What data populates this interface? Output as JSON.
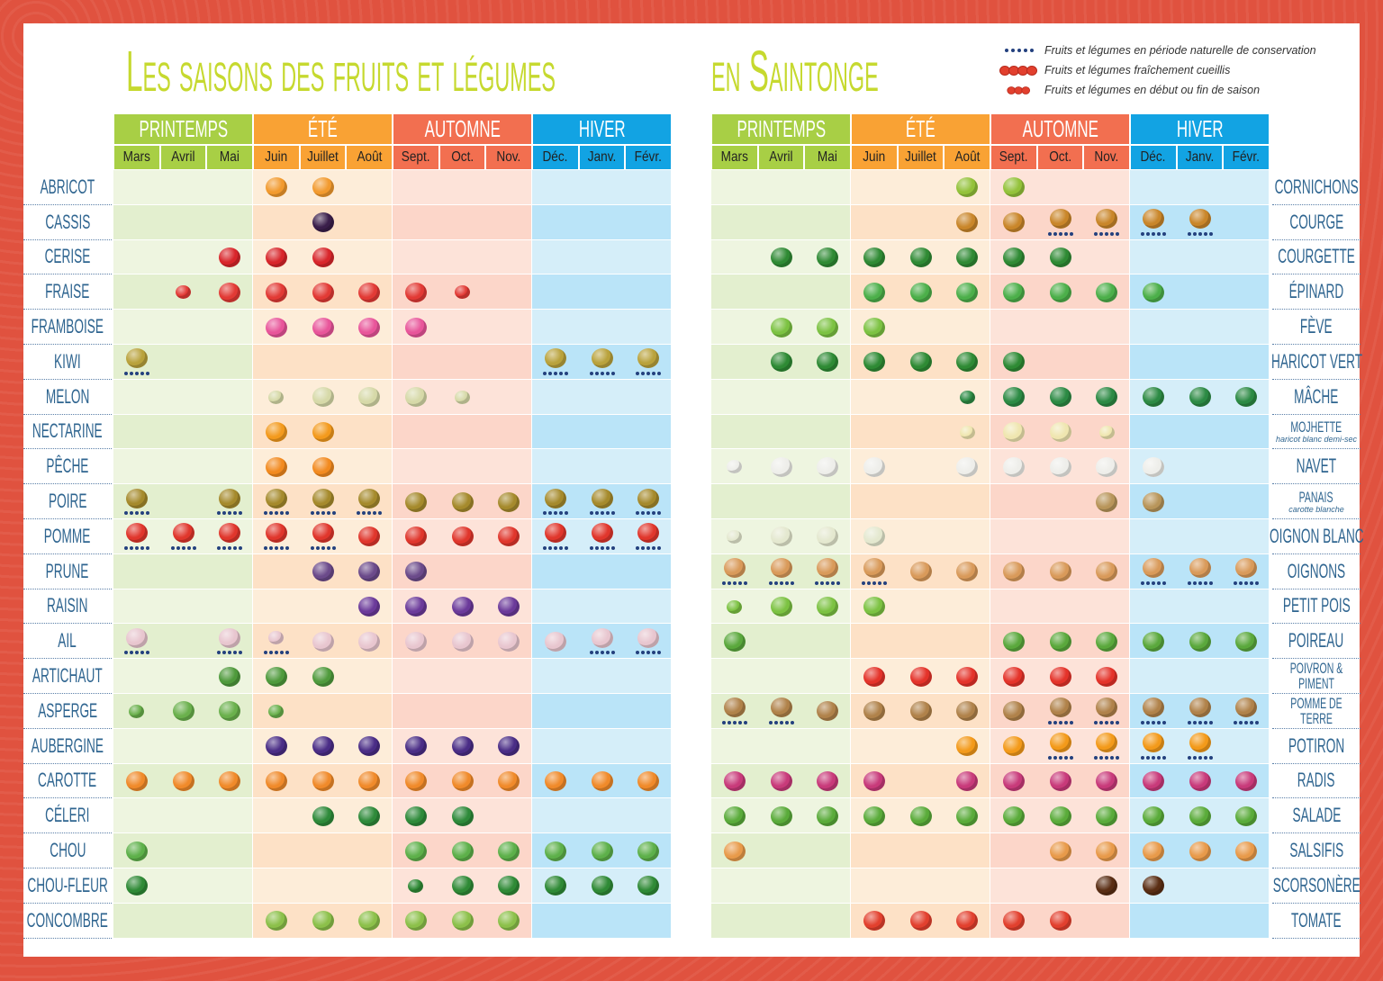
{
  "title": {
    "part1": "Les saisons des fruits et légumes",
    "part2": "en Saintonge"
  },
  "legend": [
    {
      "symbol": "conservation-dots",
      "text": "Fruits et légumes en période naturelle de conservation"
    },
    {
      "symbol": "full-icon",
      "text": "Fruits et légumes fraîchement cueillis"
    },
    {
      "symbol": "small-icon",
      "text": "Fruits et légumes en début ou fin de saison"
    }
  ],
  "seasons": [
    {
      "label": "PRINTEMPS",
      "color": "#a8cf45",
      "light": "#eef5e0",
      "dark": "#e3efcf"
    },
    {
      "label": "ÉTÉ",
      "color": "#f9a234",
      "light": "#fdedd9",
      "dark": "#fde1c6"
    },
    {
      "label": "AUTOMNE",
      "color": "#f26f50",
      "light": "#fde3d9",
      "dark": "#fcd6c9"
    },
    {
      "label": "HIVER",
      "color": "#12a3e3",
      "light": "#d5eef9",
      "dark": "#bae4f8"
    }
  ],
  "months": [
    "Mars",
    "Avril",
    "Mai",
    "Juin",
    "Juillet",
    "Août",
    "Sept.",
    "Oct.",
    "Nov.",
    "Déc.",
    "Janv.",
    "Févr."
  ],
  "cell_legend": {
    "f": "fraîchement cueilli",
    "s": "début ou fin de saison",
    "+": "période naturelle de conservation"
  },
  "left": [
    {
      "label": "Abricot",
      "icon": "apricot",
      "color": "#f29a2e",
      "cells": [
        "",
        "",
        "",
        "f",
        "f",
        "",
        "",
        "",
        "",
        "",
        "",
        ""
      ]
    },
    {
      "label": "Cassis",
      "icon": "blackcurrant",
      "color": "#3a1e4a",
      "cells": [
        "",
        "",
        "",
        "",
        "f",
        "",
        "",
        "",
        "",
        "",
        "",
        ""
      ]
    },
    {
      "label": "Cerise",
      "icon": "cherry",
      "color": "#d8262b",
      "cells": [
        "",
        "",
        "f",
        "f",
        "f",
        "",
        "",
        "",
        "",
        "",
        "",
        ""
      ]
    },
    {
      "label": "Fraise",
      "icon": "strawberry",
      "color": "#e23a35",
      "cells": [
        "",
        "s",
        "f",
        "f",
        "f",
        "f",
        "f",
        "s",
        "",
        "",
        "",
        ""
      ]
    },
    {
      "label": "Framboise",
      "icon": "raspberry",
      "color": "#e8559a",
      "cells": [
        "",
        "",
        "",
        "f",
        "f",
        "f",
        "f",
        "",
        "",
        "",
        "",
        ""
      ]
    },
    {
      "label": "Kiwi",
      "icon": "kiwi",
      "color": "#b9a23c",
      "cells": [
        "f+",
        "",
        "",
        "",
        "",
        "",
        "",
        "",
        "",
        "f+",
        "f+",
        "f+"
      ]
    },
    {
      "label": "Melon",
      "icon": "melon",
      "color": "#d6d9a8",
      "cells": [
        "",
        "",
        "",
        "s",
        "f",
        "f",
        "f",
        "s",
        "",
        "",
        "",
        ""
      ]
    },
    {
      "label": "Nectarine",
      "icon": "nectarine",
      "color": "#f39a1d",
      "cells": [
        "",
        "",
        "",
        "f",
        "f",
        "",
        "",
        "",
        "",
        "",
        "",
        ""
      ]
    },
    {
      "label": "Pêche",
      "icon": "peach",
      "color": "#f28a1f",
      "cells": [
        "",
        "",
        "",
        "f",
        "f",
        "",
        "",
        "",
        "",
        "",
        "",
        ""
      ]
    },
    {
      "label": "Poire",
      "icon": "pear",
      "color": "#a58a2c",
      "cells": [
        "f+",
        "",
        "f+",
        "f+",
        "f+",
        "f+",
        "f",
        "f",
        "f",
        "f+",
        "f+",
        "f+"
      ]
    },
    {
      "label": "Pomme",
      "icon": "apple",
      "color": "#e0362c",
      "cells": [
        "f+",
        "f+",
        "f+",
        "f+",
        "f+",
        "f",
        "f",
        "f",
        "f",
        "f+",
        "f+",
        "f+"
      ]
    },
    {
      "label": "Prune",
      "icon": "plum",
      "color": "#6b4a8a",
      "cells": [
        "",
        "",
        "",
        "",
        "f",
        "f",
        "f",
        "",
        "",
        "",
        "",
        ""
      ]
    },
    {
      "label": "Raisin",
      "icon": "grape",
      "color": "#6b3a9a",
      "cells": [
        "",
        "",
        "",
        "",
        "",
        "f",
        "f",
        "f",
        "f",
        "",
        "",
        ""
      ]
    },
    {
      "label": "Ail",
      "icon": "garlic",
      "color": "#e8c6cf",
      "cells": [
        "f+",
        "",
        "f+",
        "s+",
        "f",
        "f",
        "f",
        "f",
        "f",
        "f",
        "f+",
        "f+"
      ]
    },
    {
      "label": "Artichaut",
      "icon": "artichoke",
      "color": "#4f9a3c",
      "cells": [
        "",
        "",
        "f",
        "f",
        "f",
        "",
        "",
        "",
        "",
        "",
        "",
        ""
      ]
    },
    {
      "label": "Asperge",
      "icon": "asparagus",
      "color": "#6ab04c",
      "cells": [
        "s",
        "f",
        "f",
        "s",
        "",
        "",
        "",
        "",
        "",
        "",
        "",
        ""
      ]
    },
    {
      "label": "Aubergine",
      "icon": "eggplant",
      "color": "#4a2d86",
      "cells": [
        "",
        "",
        "",
        "f",
        "f",
        "f",
        "f",
        "f",
        "f",
        "",
        "",
        ""
      ]
    },
    {
      "label": "Carotte",
      "icon": "carrot",
      "color": "#f08a2a",
      "cells": [
        "f",
        "f",
        "f",
        "f",
        "f",
        "f",
        "f",
        "f",
        "f",
        "f",
        "f",
        "f"
      ]
    },
    {
      "label": "Céleri",
      "icon": "celery",
      "color": "#2e8a3a",
      "cells": [
        "",
        "",
        "",
        "",
        "f",
        "f",
        "f",
        "f",
        "",
        "",
        "",
        ""
      ]
    },
    {
      "label": "Chou",
      "icon": "cabbage",
      "color": "#5db04a",
      "cells": [
        "f",
        "",
        "",
        "",
        "",
        "",
        "f",
        "f",
        "f",
        "f",
        "f",
        "f"
      ]
    },
    {
      "label": "Chou-fleur",
      "icon": "cauliflower",
      "color": "#2f8a36",
      "cells": [
        "f",
        "",
        "",
        "",
        "",
        "",
        "s",
        "f",
        "f",
        "f",
        "f",
        "f"
      ]
    },
    {
      "label": "Concombre",
      "icon": "cucumber",
      "color": "#8cc04a",
      "cells": [
        "",
        "",
        "",
        "f",
        "f",
        "f",
        "f",
        "f",
        "f",
        "",
        "",
        ""
      ]
    }
  ],
  "right": [
    {
      "label": "Cornichons",
      "icon": "gherkin",
      "color": "#93c23a",
      "cells": [
        "",
        "",
        "",
        "",
        "",
        "f",
        "f",
        "",
        "",
        "",
        "",
        ""
      ]
    },
    {
      "label": "Courge",
      "icon": "squash",
      "color": "#c9862a",
      "cells": [
        "",
        "",
        "",
        "",
        "",
        "f",
        "f",
        "f+",
        "f+",
        "f+",
        "f+",
        ""
      ]
    },
    {
      "label": "Courgette",
      "icon": "zucchini",
      "color": "#2f8a34",
      "cells": [
        "",
        "f",
        "f",
        "f",
        "f",
        "f",
        "f",
        "f",
        "",
        "",
        "",
        ""
      ]
    },
    {
      "label": "Épinard",
      "icon": "spinach",
      "color": "#4caf4a",
      "cells": [
        "",
        "",
        "",
        "f",
        "f",
        "f",
        "f",
        "f",
        "f",
        "f",
        "",
        ""
      ]
    },
    {
      "label": "Fève",
      "icon": "broad-bean",
      "color": "#7cc242",
      "cells": [
        "",
        "f",
        "f",
        "f",
        "",
        "",
        "",
        "",
        "",
        "",
        "",
        ""
      ]
    },
    {
      "label": "Haricot vert",
      "icon": "green-bean",
      "color": "#2e8a34",
      "cells": [
        "",
        "f",
        "f",
        "f",
        "f",
        "f",
        "f",
        "",
        "",
        "",
        "",
        ""
      ]
    },
    {
      "label": "Mâche",
      "icon": "lambs-lettuce",
      "color": "#2c8a44",
      "cells": [
        "",
        "",
        "",
        "",
        "",
        "s",
        "f",
        "f",
        "f",
        "f",
        "f",
        "f"
      ]
    },
    {
      "label": "Mojhette",
      "sub": "haricot blanc demi-sec",
      "icon": "white-bean",
      "color": "#efe6b0",
      "cells": [
        "",
        "",
        "",
        "",
        "",
        "s",
        "f",
        "f",
        "s",
        "",
        "",
        ""
      ]
    },
    {
      "label": "Navet",
      "icon": "turnip",
      "color": "#eeeeea",
      "cells": [
        "s",
        "f",
        "f",
        "f",
        "",
        "f",
        "f",
        "f",
        "f",
        "f",
        "",
        ""
      ]
    },
    {
      "label": "Panais",
      "sub": "carotte blanche",
      "icon": "parsnip",
      "color": "#b8955a",
      "cells": [
        "",
        "",
        "",
        "",
        "",
        "",
        "",
        "",
        "f",
        "f",
        "",
        ""
      ]
    },
    {
      "label": "Oignon blanc",
      "icon": "white-onion",
      "color": "#e4e8cf",
      "cells": [
        "s",
        "f",
        "f",
        "f",
        "",
        "",
        "",
        "",
        "",
        "",
        "",
        ""
      ]
    },
    {
      "label": "Oignons",
      "icon": "onion",
      "color": "#d99a5a",
      "cells": [
        "f+",
        "f+",
        "f+",
        "f+",
        "f",
        "f",
        "f",
        "f",
        "f",
        "f+",
        "f+",
        "f+"
      ]
    },
    {
      "label": "Petit pois",
      "icon": "pea",
      "color": "#7cc242",
      "cells": [
        "s",
        "f",
        "f",
        "f",
        "",
        "",
        "",
        "",
        "",
        "",
        "",
        ""
      ]
    },
    {
      "label": "Poireau",
      "icon": "leek",
      "color": "#5aa83c",
      "cells": [
        "f",
        "",
        "",
        "",
        "",
        "",
        "f",
        "f",
        "f",
        "f",
        "f",
        "f"
      ]
    },
    {
      "label": "Poivron & piment",
      "icon": "pepper",
      "color": "#e4332a",
      "cells": [
        "",
        "",
        "",
        "f",
        "f",
        "f",
        "f",
        "f",
        "f",
        "",
        "",
        ""
      ]
    },
    {
      "label": "Pomme de terre",
      "icon": "potato",
      "color": "#b0824a",
      "cells": [
        "f+",
        "f+",
        "f",
        "f",
        "f",
        "f",
        "f",
        "f+",
        "f+",
        "f+",
        "f+",
        "f+"
      ]
    },
    {
      "label": "Potiron",
      "icon": "pumpkin",
      "color": "#f39a1a",
      "cells": [
        "",
        "",
        "",
        "",
        "",
        "f",
        "f",
        "f+",
        "f+",
        "f+",
        "f+",
        ""
      ]
    },
    {
      "label": "Radis",
      "icon": "radish",
      "color": "#c83a7a",
      "cells": [
        "f",
        "f",
        "f",
        "f",
        "",
        "f",
        "f",
        "f",
        "f",
        "f",
        "f",
        "f"
      ]
    },
    {
      "label": "Salade",
      "icon": "lettuce",
      "color": "#5aab3a",
      "cells": [
        "f",
        "f",
        "f",
        "f",
        "f",
        "f",
        "f",
        "f",
        "f",
        "f",
        "f",
        "f"
      ]
    },
    {
      "label": "Salsifis",
      "icon": "salsify",
      "color": "#e89a4a",
      "cells": [
        "f",
        "",
        "",
        "",
        "",
        "",
        "",
        "f",
        "f",
        "f",
        "f",
        "f"
      ]
    },
    {
      "label": "Scorsonère",
      "icon": "black-salsify",
      "color": "#5a2e14",
      "cells": [
        "",
        "",
        "",
        "",
        "",
        "",
        "",
        "",
        "f",
        "f",
        "",
        ""
      ]
    },
    {
      "label": "Tomate",
      "icon": "tomato",
      "color": "#e2402e",
      "cells": [
        "",
        "",
        "",
        "f",
        "f",
        "f",
        "f",
        "f",
        "",
        "",
        "",
        ""
      ]
    }
  ]
}
